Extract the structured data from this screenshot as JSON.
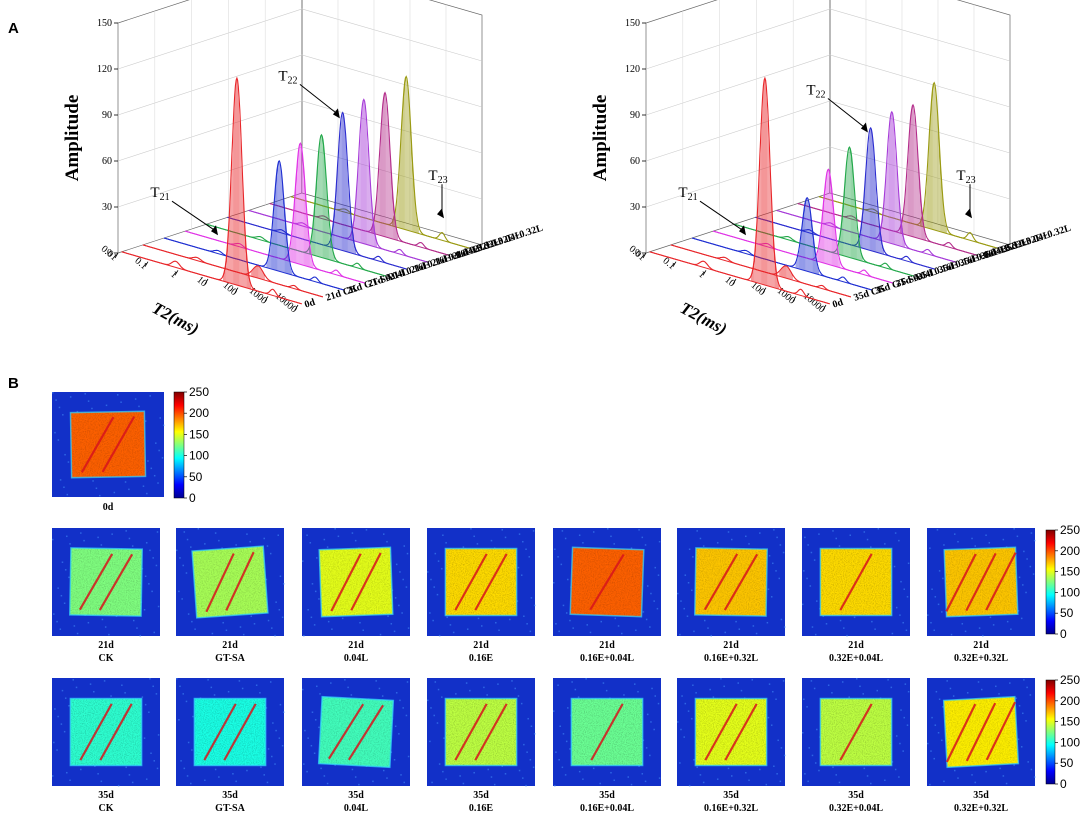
{
  "panels": {
    "a": "A",
    "b": "B"
  },
  "chart_data": [
    {
      "type": "line",
      "subtype": "3d-waterfall",
      "title": "",
      "ylabel": "Amplitude",
      "xlabel": "T2(ms)",
      "ylim": [
        0,
        150
      ],
      "y_ticks": [
        "0",
        "30",
        "60",
        "90",
        "120",
        "150"
      ],
      "x_ticks": [
        "0.01",
        "0.1",
        "1",
        "10",
        "100",
        "1000",
        "10000"
      ],
      "annotations": [
        {
          "main": "T",
          "sub": "21"
        },
        {
          "main": "T",
          "sub": "22"
        },
        {
          "main": "T",
          "sub": "23"
        }
      ],
      "series": [
        {
          "name": "0d",
          "color": "#e8262a",
          "t21": 4,
          "t22": 135,
          "t23": 4
        },
        {
          "name": "21d CK",
          "color": "#e8262a",
          "t21": 2,
          "t22": 8,
          "t23": 2
        },
        {
          "name": "21d GT-SA",
          "color": "#1f2fd1",
          "t21": 2,
          "t22": 72,
          "t23": 3
        },
        {
          "name": "21d 0.04L",
          "color": "#e033e6",
          "t21": 2,
          "t22": 79,
          "t23": 3
        },
        {
          "name": "21d 0.16E",
          "color": "#23a84a",
          "t21": 2,
          "t22": 80,
          "t23": 3
        },
        {
          "name": "21d 0.16E+0.04L",
          "color": "#2b2ccf",
          "t21": 2,
          "t22": 90,
          "t23": 3
        },
        {
          "name": "21d 0.16E+0.32L",
          "color": "#a63bd8",
          "t21": 2,
          "t22": 94,
          "t23": 3
        },
        {
          "name": "21d 0.32E+0.04L",
          "color": "#b32c8a",
          "t21": 2,
          "t22": 94,
          "t23": 3
        },
        {
          "name": "21d 0.32E+0.32L",
          "color": "#9a9a12",
          "t21": 2,
          "t22": 100,
          "t23": 5
        }
      ]
    },
    {
      "type": "line",
      "subtype": "3d-waterfall",
      "title": "",
      "ylabel": "Amplitude",
      "xlabel": "T2(ms)",
      "ylim": [
        0,
        150
      ],
      "y_ticks": [
        "0",
        "30",
        "60",
        "90",
        "120",
        "150"
      ],
      "x_ticks": [
        "0.01",
        "0.1",
        "1",
        "10",
        "100",
        "1000",
        "10000"
      ],
      "annotations": [
        {
          "main": "T",
          "sub": "21"
        },
        {
          "main": "T",
          "sub": "22"
        },
        {
          "main": "T",
          "sub": "23"
        }
      ],
      "series": [
        {
          "name": "0d",
          "color": "#e8262a",
          "t21": 4,
          "t22": 135,
          "t23": 4
        },
        {
          "name": "35d CK",
          "color": "#e8262a",
          "t21": 2,
          "t22": 8,
          "t23": 2
        },
        {
          "name": "35d GT-SA",
          "color": "#1f2fd1",
          "t21": 2,
          "t22": 48,
          "t23": 3
        },
        {
          "name": "35d 0.04L",
          "color": "#e033e6",
          "t21": 2,
          "t22": 62,
          "t23": 3
        },
        {
          "name": "35d 0.16E",
          "color": "#23a84a",
          "t21": 2,
          "t22": 72,
          "t23": 3
        },
        {
          "name": "35d 0.16E+0.04L",
          "color": "#2b2ccf",
          "t21": 2,
          "t22": 80,
          "t23": 3
        },
        {
          "name": "35d 0.16E+0.32L",
          "color": "#a63bd8",
          "t21": 2,
          "t22": 86,
          "t23": 3
        },
        {
          "name": "35d 0.32E+0.04L",
          "color": "#b32c8a",
          "t21": 2,
          "t22": 86,
          "t23": 3
        },
        {
          "name": "35d 0.32E+0.32L",
          "color": "#9a9a12",
          "t21": 2,
          "t22": 96,
          "t23": 5
        }
      ]
    },
    {
      "type": "heatmap",
      "subtype": "mri-images",
      "colorbar": {
        "min": 0,
        "max": 250,
        "ticks": [
          "250",
          "200",
          "150",
          "100",
          "50",
          "0"
        ]
      },
      "reference": {
        "label": "0d",
        "mean_intensity": 195,
        "streaks": 2
      },
      "rows": [
        {
          "time": "21d",
          "samples": [
            {
              "name": "CK",
              "mean_intensity": 125,
              "streaks": 2,
              "tilt": 1
            },
            {
              "name": "GT-SA",
              "mean_intensity": 135,
              "streaks": 2,
              "tilt": -4
            },
            {
              "name": "0.04L",
              "mean_intensity": 150,
              "streaks": 2,
              "tilt": -2
            },
            {
              "name": "0.16E",
              "mean_intensity": 165,
              "streaks": 2,
              "tilt": 0
            },
            {
              "name": "0.16E+0.04L",
              "mean_intensity": 195,
              "streaks": 1,
              "tilt": 2
            },
            {
              "name": "0.16E+0.32L",
              "mean_intensity": 170,
              "streaks": 2,
              "tilt": 1
            },
            {
              "name": "0.32E+0.04L",
              "mean_intensity": 165,
              "streaks": 1,
              "tilt": 0
            },
            {
              "name": "0.32E+0.32L",
              "mean_intensity": 170,
              "streaks": 3,
              "tilt": -2
            }
          ]
        },
        {
          "time": "35d",
          "samples": [
            {
              "name": "CK",
              "mean_intensity": 105,
              "streaks": 2,
              "tilt": 0
            },
            {
              "name": "GT-SA",
              "mean_intensity": 100,
              "streaks": 2,
              "tilt": 0
            },
            {
              "name": "0.04L",
              "mean_intensity": 110,
              "streaks": 2,
              "tilt": 3
            },
            {
              "name": "0.16E",
              "mean_intensity": 140,
              "streaks": 2,
              "tilt": 0
            },
            {
              "name": "0.16E+0.04L",
              "mean_intensity": 120,
              "streaks": 1,
              "tilt": 0
            },
            {
              "name": "0.16E+0.32L",
              "mean_intensity": 150,
              "streaks": 2,
              "tilt": 0
            },
            {
              "name": "0.32E+0.04L",
              "mean_intensity": 140,
              "streaks": 1,
              "tilt": 0
            },
            {
              "name": "0.32E+0.32L",
              "mean_intensity": 160,
              "streaks": 3,
              "tilt": -3
            }
          ]
        }
      ]
    }
  ]
}
